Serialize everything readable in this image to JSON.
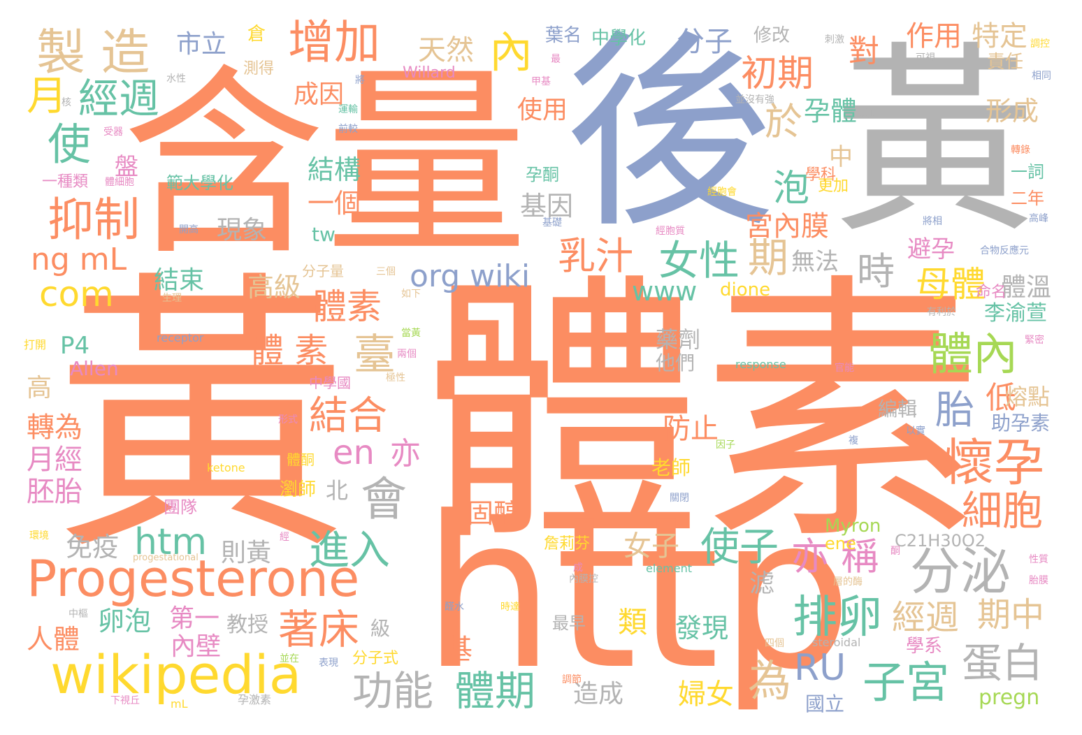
{
  "palette": {
    "orange": "#fc8d62",
    "blue": "#8da0cb",
    "gray": "#b3b3b3",
    "teal": "#66c2a5",
    "pink": "#e78ac3",
    "green": "#a6d854",
    "yellow": "#ffd92f",
    "tan": "#e5c494"
  },
  "words": [
    {
      "t": "黃",
      "c": "orange"
    },
    {
      "t": "體素",
      "c": "orange"
    },
    {
      "t": "含量",
      "c": "orange"
    },
    {
      "t": "後",
      "c": "blue"
    },
    {
      "t": "黃",
      "c": "gray"
    },
    {
      "t": "http",
      "c": "orange"
    },
    {
      "t": "Progesterone",
      "c": "orange"
    },
    {
      "t": "wikipedia",
      "c": "yellow"
    },
    {
      "t": "製 造",
      "c": "tan"
    },
    {
      "t": "增加",
      "c": "orange"
    },
    {
      "t": "內",
      "c": "yellow"
    },
    {
      "t": "月",
      "c": "yellow"
    },
    {
      "t": "經週",
      "c": "teal"
    },
    {
      "t": "使",
      "c": "teal"
    },
    {
      "t": "抑制",
      "c": "orange"
    },
    {
      "t": "ng mL",
      "c": "orange"
    },
    {
      "t": "com",
      "c": "yellow"
    },
    {
      "t": "分泌",
      "c": "gray"
    },
    {
      "t": "懷孕",
      "c": "orange"
    },
    {
      "t": "排卵",
      "c": "teal"
    },
    {
      "t": "會",
      "c": "gray"
    },
    {
      "t": "女性",
      "c": "teal"
    },
    {
      "t": "乳汁",
      "c": "orange"
    },
    {
      "t": "初期",
      "c": "orange"
    },
    {
      "t": "體內",
      "c": "green"
    },
    {
      "t": "母體",
      "c": "yellow"
    },
    {
      "t": "org wiki",
      "c": "blue"
    },
    {
      "t": "htm",
      "c": "teal"
    },
    {
      "t": "結合",
      "c": "orange"
    },
    {
      "t": "體素",
      "c": "orange"
    },
    {
      "t": "體 素",
      "c": "orange"
    },
    {
      "t": "臺",
      "c": "tan"
    },
    {
      "t": "進入",
      "c": "teal"
    },
    {
      "t": "使子",
      "c": "teal"
    },
    {
      "t": "亦 稱",
      "c": "pink"
    },
    {
      "t": "子宮",
      "c": "teal"
    },
    {
      "t": "蛋白",
      "c": "gray"
    },
    {
      "t": "著床",
      "c": "orange"
    },
    {
      "t": "功能",
      "c": "gray"
    },
    {
      "t": "體期",
      "c": "teal"
    },
    {
      "t": "為",
      "c": "tan"
    },
    {
      "t": "RU",
      "c": "blue"
    },
    {
      "t": "經週",
      "c": "tan"
    },
    {
      "t": "期中",
      "c": "tan"
    },
    {
      "t": "細胞",
      "c": "orange"
    },
    {
      "t": "胎",
      "c": "blue"
    },
    {
      "t": "時",
      "c": "gray"
    },
    {
      "t": "期",
      "c": "tan"
    },
    {
      "t": "泡",
      "c": "teal"
    },
    {
      "t": "於",
      "c": "tan"
    },
    {
      "t": "en",
      "c": "pink"
    },
    {
      "t": "亦",
      "c": "pink"
    },
    {
      "t": "市立",
      "c": "blue"
    },
    {
      "t": "天然",
      "c": "tan"
    },
    {
      "t": "分子",
      "c": "blue"
    },
    {
      "t": "作用",
      "c": "orange"
    },
    {
      "t": "特定",
      "c": "tan"
    },
    {
      "t": "對",
      "c": "orange"
    },
    {
      "t": "成因",
      "c": "orange"
    },
    {
      "t": "使用",
      "c": "orange"
    },
    {
      "t": "孕體",
      "c": "teal"
    },
    {
      "t": "形成",
      "c": "tan"
    },
    {
      "t": "結構",
      "c": "teal"
    },
    {
      "t": "一個",
      "c": "orange"
    },
    {
      "t": "基因",
      "c": "gray"
    },
    {
      "t": "宮內膜",
      "c": "orange"
    },
    {
      "t": "現象",
      "c": "gray"
    },
    {
      "t": "結束",
      "c": "teal"
    },
    {
      "t": "高級",
      "c": "tan"
    },
    {
      "t": "www",
      "c": "teal"
    },
    {
      "t": "無法",
      "c": "gray"
    },
    {
      "t": "避孕",
      "c": "pink"
    },
    {
      "t": "體溫",
      "c": "gray"
    },
    {
      "t": "李渝萱",
      "c": "teal"
    },
    {
      "t": "P4",
      "c": "teal"
    },
    {
      "t": "Allen",
      "c": "pink"
    },
    {
      "t": "高",
      "c": "tan"
    },
    {
      "t": "轉為",
      "c": "orange"
    },
    {
      "t": "月經",
      "c": "pink"
    },
    {
      "t": "胚胎",
      "c": "pink"
    },
    {
      "t": "免疫",
      "c": "gray"
    },
    {
      "t": "則黃",
      "c": "gray"
    },
    {
      "t": "固醇",
      "c": "orange"
    },
    {
      "t": "女子",
      "c": "tan"
    },
    {
      "t": "藥劑",
      "c": "gray"
    },
    {
      "t": "他們",
      "c": "gray"
    },
    {
      "t": "防止",
      "c": "orange"
    },
    {
      "t": "低",
      "c": "orange"
    },
    {
      "t": "熔點",
      "c": "tan"
    },
    {
      "t": "助孕素",
      "c": "blue"
    },
    {
      "t": "編輯",
      "c": "gray"
    },
    {
      "t": "人體",
      "c": "orange"
    },
    {
      "t": "卵泡",
      "c": "teal"
    },
    {
      "t": "第一",
      "c": "pink"
    },
    {
      "t": "內壁",
      "c": "pink"
    },
    {
      "t": "教授",
      "c": "gray"
    },
    {
      "t": "級",
      "c": "gray"
    },
    {
      "t": "類",
      "c": "yellow"
    },
    {
      "t": "基",
      "c": "orange"
    },
    {
      "t": "發現",
      "c": "teal"
    },
    {
      "t": "婦女",
      "c": "yellow"
    },
    {
      "t": "造成",
      "c": "gray"
    },
    {
      "t": "pregn",
      "c": "green"
    },
    {
      "t": "國立",
      "c": "blue"
    },
    {
      "t": "學系",
      "c": "pink"
    },
    {
      "t": "滤",
      "c": "gray"
    },
    {
      "t": "dione",
      "c": "yellow"
    },
    {
      "t": "Myron",
      "c": "green"
    },
    {
      "t": "ene",
      "c": "yellow"
    },
    {
      "t": "C21H30O2",
      "c": "gray"
    },
    {
      "t": "葉名",
      "c": "blue"
    },
    {
      "t": "中學化",
      "c": "teal"
    },
    {
      "t": "修改",
      "c": "gray"
    },
    {
      "t": "Willard",
      "c": "pink"
    },
    {
      "t": "測得",
      "c": "tan"
    },
    {
      "t": "範大學化",
      "c": "teal"
    },
    {
      "t": "一種類",
      "c": "pink"
    },
    {
      "t": "盤",
      "c": "pink"
    },
    {
      "t": "孕酮",
      "c": "teal"
    },
    {
      "t": "學科",
      "c": "orange"
    },
    {
      "t": "更加",
      "c": "yellow"
    },
    {
      "t": "一詞",
      "c": "teal"
    },
    {
      "t": "二年",
      "c": "orange"
    },
    {
      "t": "中",
      "c": "tan"
    },
    {
      "t": "北",
      "c": "gray"
    },
    {
      "t": "tw",
      "c": "teal"
    },
    {
      "t": "分子量",
      "c": "tan"
    },
    {
      "t": "三個",
      "c": "tan"
    },
    {
      "t": "中學國",
      "c": "pink"
    },
    {
      "t": "分子式",
      "c": "yellow"
    },
    {
      "t": "命名",
      "c": "pink"
    },
    {
      "t": "老師",
      "c": "yellow"
    },
    {
      "t": "瀏師",
      "c": "yellow"
    },
    {
      "t": "團隊",
      "c": "pink"
    },
    {
      "t": "體酮",
      "c": "yellow"
    },
    {
      "t": "詹莉芬",
      "c": "yellow"
    },
    {
      "t": "最早",
      "c": "gray"
    },
    {
      "t": "責任",
      "c": "tan"
    },
    {
      "t": "倉",
      "c": "yellow"
    },
    {
      "t": "receptor",
      "c": "blue"
    },
    {
      "t": "response",
      "c": "teal"
    },
    {
      "t": "progestational",
      "c": "tan"
    },
    {
      "t": "ketone",
      "c": "yellow"
    },
    {
      "t": "element",
      "c": "teal"
    },
    {
      "t": "steroidal",
      "c": "gray"
    },
    {
      "t": "孕激素",
      "c": "gray"
    },
    {
      "t": "下視丘",
      "c": "pink"
    },
    {
      "t": "mL",
      "c": "yellow"
    },
    {
      "t": "打開",
      "c": "yellow"
    },
    {
      "t": "水性",
      "c": "gray"
    },
    {
      "t": "受器",
      "c": "pink"
    },
    {
      "t": "開高",
      "c": "blue"
    },
    {
      "t": "生理",
      "c": "tan"
    },
    {
      "t": "環境",
      "c": "yellow"
    },
    {
      "t": "中樞",
      "c": "gray"
    },
    {
      "t": "並在",
      "c": "green"
    },
    {
      "t": "表現",
      "c": "blue"
    },
    {
      "t": "刺激",
      "c": "gray"
    },
    {
      "t": "可視",
      "c": "gray"
    },
    {
      "t": "調控",
      "c": "yellow"
    },
    {
      "t": "相同",
      "c": "blue"
    },
    {
      "t": "並沒有強",
      "c": "gray"
    },
    {
      "t": "藉此",
      "c": "gray"
    },
    {
      "t": "轉錄",
      "c": "orange"
    },
    {
      "t": "經胞會",
      "c": "yellow"
    },
    {
      "t": "將相",
      "c": "blue"
    },
    {
      "t": "高峰",
      "c": "blue"
    },
    {
      "t": "合物反應元",
      "c": "blue"
    },
    {
      "t": "有利於",
      "c": "gray"
    },
    {
      "t": "緊密",
      "c": "pink"
    },
    {
      "t": "官能",
      "c": "pink"
    },
    {
      "t": "以實",
      "c": "blue"
    },
    {
      "t": "因子",
      "c": "green"
    },
    {
      "t": "關閉",
      "c": "blue"
    },
    {
      "t": "四個",
      "c": "tan"
    },
    {
      "t": "性質",
      "c": "pink"
    },
    {
      "t": "胎膜",
      "c": "pink"
    },
    {
      "t": "醛水",
      "c": "blue"
    },
    {
      "t": "時達",
      "c": "yellow"
    },
    {
      "t": "內膜控",
      "c": "gray"
    },
    {
      "t": "調節",
      "c": "orange"
    },
    {
      "t": "甲基",
      "c": "pink"
    },
    {
      "t": "運輸",
      "c": "teal"
    },
    {
      "t": "前較",
      "c": "blue"
    },
    {
      "t": "將",
      "c": "blue"
    },
    {
      "t": "核",
      "c": "gray"
    },
    {
      "t": "體細胞",
      "c": "pink"
    },
    {
      "t": "基礎",
      "c": "blue"
    },
    {
      "t": "經胞質",
      "c": "pink"
    },
    {
      "t": "如下",
      "c": "tan"
    },
    {
      "t": "兩個",
      "c": "pink"
    },
    {
      "t": "極性",
      "c": "tan"
    },
    {
      "t": "當黃",
      "c": "green"
    },
    {
      "t": "形式",
      "c": "pink"
    },
    {
      "t": "經",
      "c": "pink"
    },
    {
      "t": "成",
      "c": "pink"
    },
    {
      "t": "最",
      "c": "pink"
    },
    {
      "t": "複",
      "c": "blue"
    },
    {
      "t": "酮",
      "c": "pink"
    },
    {
      "t": "層的酶",
      "c": "tan"
    }
  ]
}
